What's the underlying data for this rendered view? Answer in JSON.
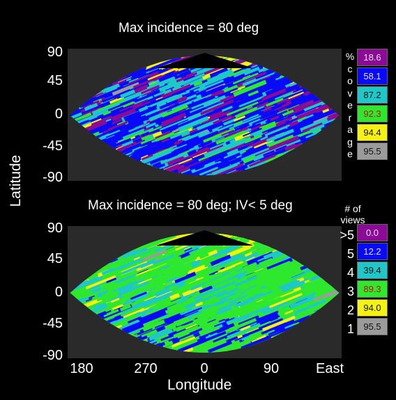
{
  "chart_data": [
    {
      "type": "heatmap",
      "title": "Max incidence = 80 deg",
      "ylabel": "Latitude",
      "y_ticks": [
        "90",
        "45",
        "0",
        "-45",
        "-90"
      ],
      "legend_title_chars": [
        "%",
        "c",
        "o",
        "v",
        "e",
        "r",
        "a",
        "g",
        "e"
      ],
      "legend": [
        {
          "value": "18.6",
          "color": "#8b0b96",
          "text_color": "#e0e0e0"
        },
        {
          "value": "58.1",
          "color": "#0a0afa",
          "text_color": "#e0e0e0"
        },
        {
          "value": "87.2",
          "color": "#1ec8c8",
          "text_color": "#111111"
        },
        {
          "value": "92.3",
          "color": "#2ee82e",
          "text_color": "#c01010"
        },
        {
          "value": "94.4",
          "color": "#f4f20e",
          "text_color": "#111111"
        },
        {
          "value": "95.5",
          "color": "#9b9b9b",
          "text_color": "#111111"
        }
      ]
    },
    {
      "type": "heatmap",
      "title": "Max incidence = 80 deg; IV< 5 deg",
      "xlabel": "Longitude",
      "ylabel": "Latitude",
      "x_ticks": [
        "180",
        "270",
        "0",
        "90",
        "East"
      ],
      "y_ticks": [
        "90",
        "45",
        "0",
        "-45",
        "-90"
      ],
      "legend_title": "# of views",
      "legend_title_lines": [
        "# of",
        "views"
      ],
      "legend": [
        {
          "views": ">5",
          "value": "0.0",
          "color": "#8b0b96",
          "text_color": "#e0e0e0"
        },
        {
          "views": "5",
          "value": "12.2",
          "color": "#0a0afa",
          "text_color": "#e0e0e0"
        },
        {
          "views": "4",
          "value": "39.4",
          "color": "#1ec8c8",
          "text_color": "#111111"
        },
        {
          "views": "3",
          "value": "89.3",
          "color": "#2ee82e",
          "text_color": "#c01010"
        },
        {
          "views": "2",
          "value": "94.0",
          "color": "#f4f20e",
          "text_color": "#111111"
        },
        {
          "views": "1",
          "value": "95.5",
          "color": "#9b9b9b",
          "text_color": "#111111"
        }
      ]
    }
  ]
}
